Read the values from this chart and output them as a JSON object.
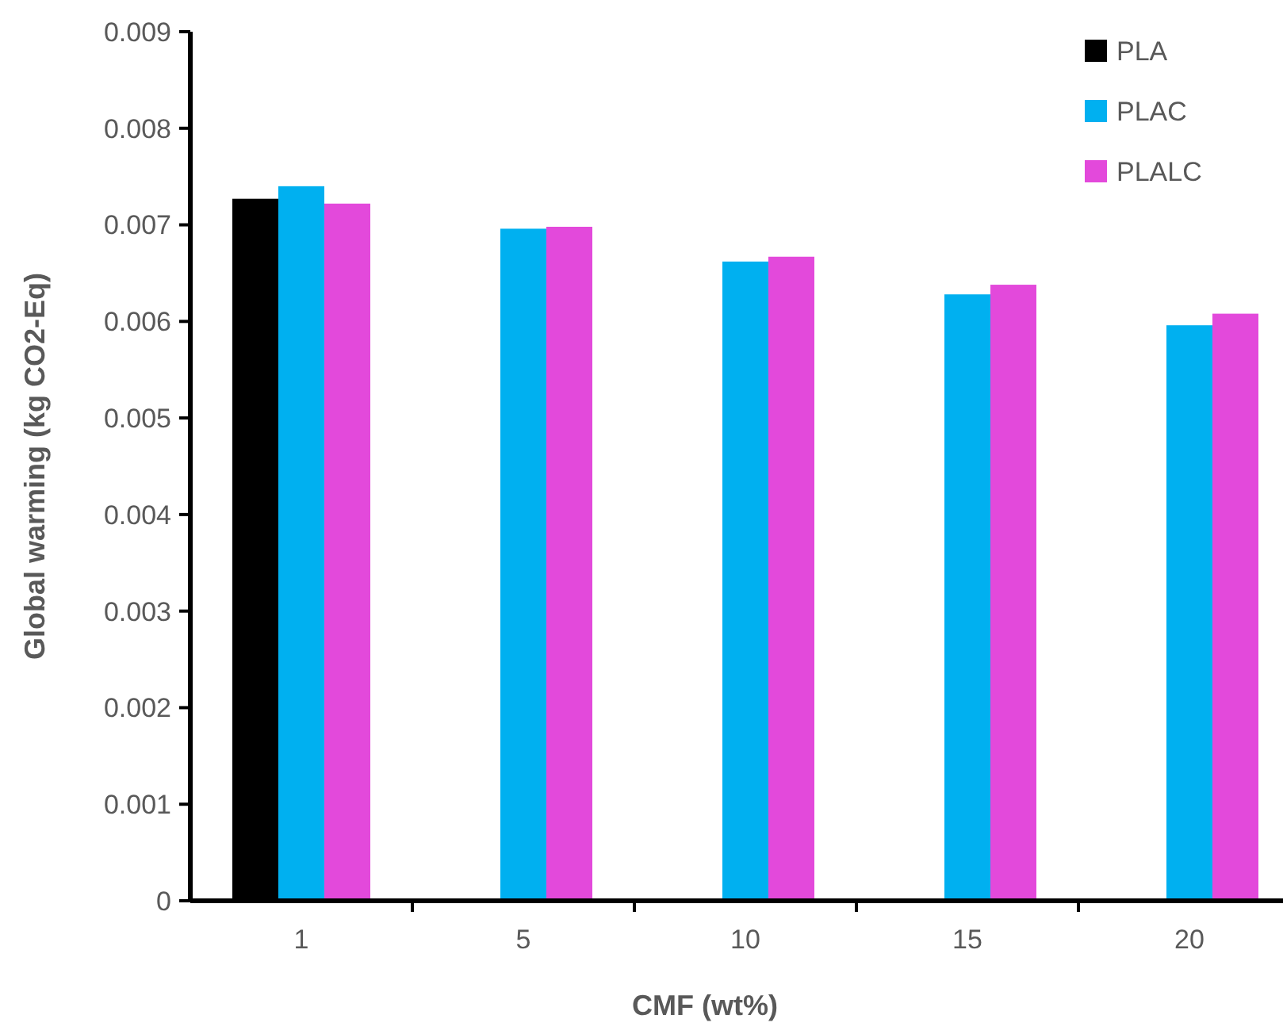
{
  "chart_data": {
    "type": "bar",
    "xlabel": "CMF (wt%)",
    "ylabel": "Global warming (kg CO2-Eq)",
    "categories": [
      "1",
      "5",
      "10",
      "15",
      "20"
    ],
    "series": [
      {
        "name": "PLA",
        "color": "#000000",
        "values": [
          0.00727,
          null,
          null,
          null,
          null
        ]
      },
      {
        "name": "PLAC",
        "color": "#00b0f0",
        "values": [
          0.0074,
          0.00696,
          0.00662,
          0.00628,
          0.00596
        ]
      },
      {
        "name": "PLALC",
        "color": "#e349db",
        "values": [
          0.00722,
          0.00698,
          0.00667,
          0.00638,
          0.00608
        ]
      }
    ],
    "ylim": [
      0,
      0.009
    ],
    "yticks": [
      0,
      0.001,
      0.002,
      0.003,
      0.004,
      0.005,
      0.006,
      0.007,
      0.008,
      0.009
    ],
    "grid": false,
    "legend": "top right"
  }
}
